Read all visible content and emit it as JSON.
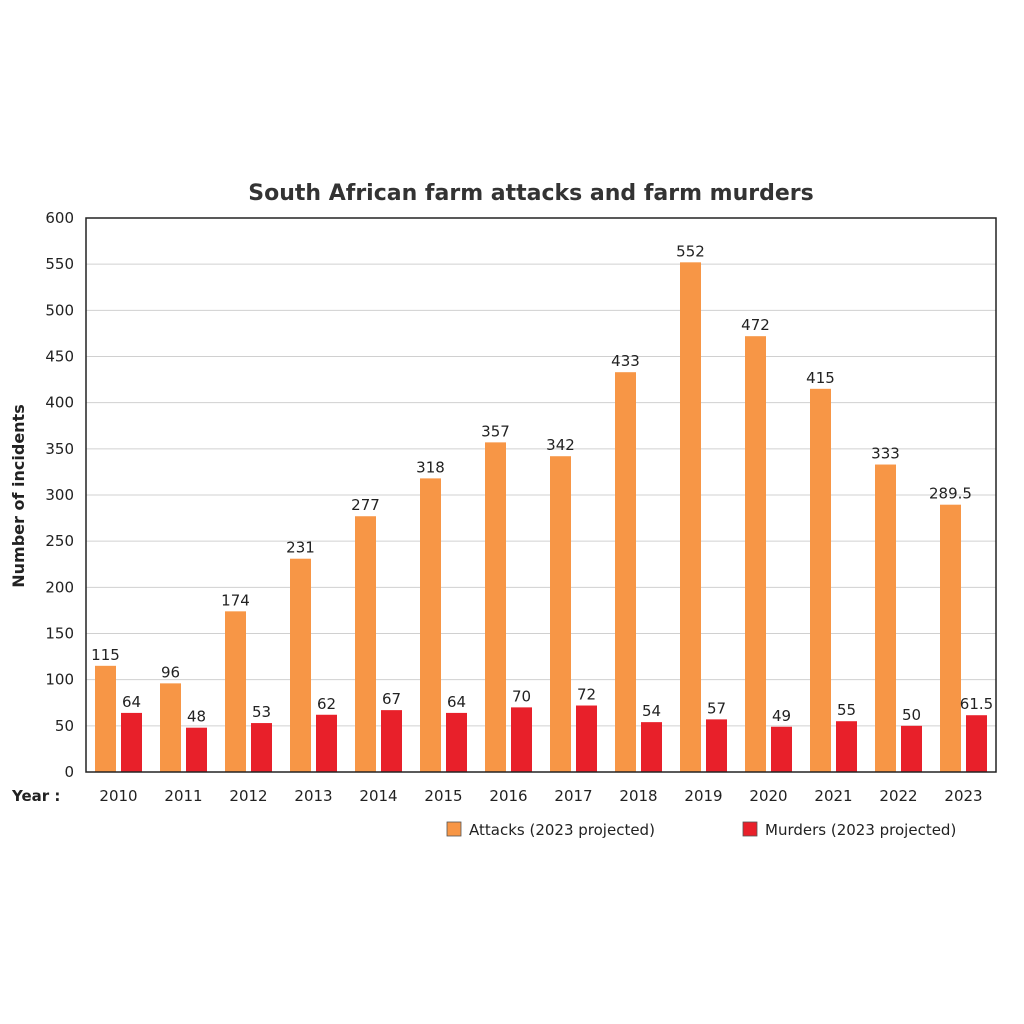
{
  "chart_data": {
    "type": "bar",
    "title": "South African farm attacks and farm murders",
    "ylabel": "Number of incidents",
    "xlabel_prefix": "Year :",
    "ylim": [
      0,
      600
    ],
    "yticks": [
      "0",
      "50",
      "100",
      "150",
      "200",
      "250",
      "300",
      "350",
      "400",
      "450",
      "500",
      "550",
      "600"
    ],
    "grid": true,
    "legend_position": "bottom-right",
    "categories": [
      "2010",
      "2011",
      "2012",
      "2013",
      "2014",
      "2015",
      "2016",
      "2017",
      "2018",
      "2019",
      "2020",
      "2021",
      "2022",
      "2023"
    ],
    "series": [
      {
        "name": "Attacks (2023 projected)",
        "color": "#f79646",
        "values": [
          115,
          96,
          174,
          231,
          277,
          318,
          357,
          342,
          433,
          552,
          472,
          415,
          333,
          289.5
        ],
        "labels": [
          "115",
          "96",
          "174",
          "231",
          "277",
          "318",
          "357",
          "342",
          "433",
          "552",
          "472",
          "415",
          "333",
          "289.5"
        ]
      },
      {
        "name": "Murders (2023 projected)",
        "color": "#e8202a",
        "values": [
          64,
          48,
          53,
          62,
          67,
          64,
          70,
          72,
          54,
          57,
          49,
          55,
          50,
          61.5
        ],
        "labels": [
          "64",
          "48",
          "53",
          "62",
          "67",
          "64",
          "70",
          "72",
          "54",
          "57",
          "49",
          "55",
          "50",
          "61.5"
        ]
      }
    ]
  }
}
